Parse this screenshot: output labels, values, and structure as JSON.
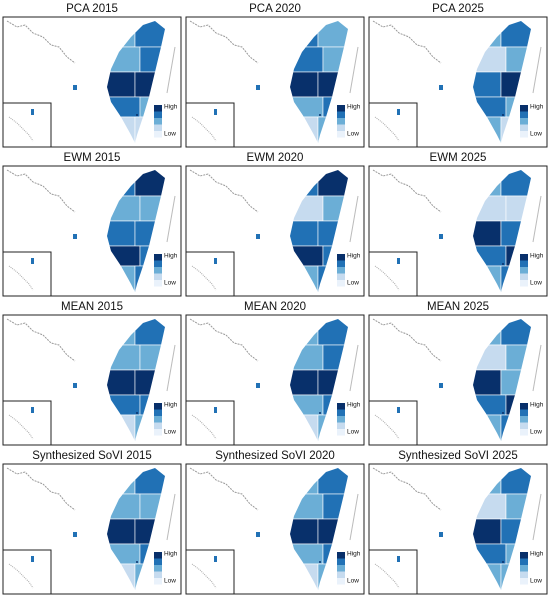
{
  "legend": {
    "high": "High",
    "low": "Low",
    "colors": [
      "#08306b",
      "#2171b5",
      "#6baed6",
      "#c6dbef",
      "#eaf2fb"
    ]
  },
  "panels": [
    {
      "title": "PCA 2015",
      "region_classes": [
        3,
        4,
        3,
        4,
        5,
        5,
        4,
        3,
        2,
        2
      ]
    },
    {
      "title": "PCA 2020",
      "region_classes": [
        4,
        3,
        4,
        3,
        5,
        5,
        3,
        4,
        2,
        3
      ]
    },
    {
      "title": "PCA 2025",
      "region_classes": [
        3,
        4,
        2,
        3,
        4,
        5,
        4,
        3,
        3,
        2
      ]
    },
    {
      "title": "EWM 2015",
      "region_classes": [
        4,
        5,
        3,
        3,
        4,
        4,
        5,
        4,
        3,
        4
      ]
    },
    {
      "title": "EWM 2020",
      "region_classes": [
        4,
        5,
        2,
        3,
        4,
        4,
        5,
        4,
        3,
        4
      ]
    },
    {
      "title": "EWM 2025",
      "region_classes": [
        3,
        4,
        2,
        2,
        5,
        4,
        4,
        5,
        3,
        4
      ]
    },
    {
      "title": "MEAN 2015",
      "region_classes": [
        3,
        4,
        3,
        3,
        5,
        5,
        4,
        4,
        2,
        3
      ]
    },
    {
      "title": "MEAN 2020",
      "region_classes": [
        3,
        4,
        3,
        4,
        5,
        5,
        3,
        4,
        2,
        3
      ]
    },
    {
      "title": "MEAN 2025",
      "region_classes": [
        3,
        4,
        2,
        3,
        5,
        3,
        4,
        5,
        3,
        4
      ]
    },
    {
      "title": "Synthesized SoVI 2015",
      "region_classes": [
        3,
        4,
        3,
        3,
        5,
        5,
        3,
        4,
        2,
        3
      ]
    },
    {
      "title": "Synthesized SoVI 2020",
      "region_classes": [
        3,
        4,
        3,
        4,
        5,
        5,
        3,
        4,
        2,
        3
      ]
    },
    {
      "title": "Synthesized SoVI 2025",
      "region_classes": [
        3,
        4,
        2,
        3,
        5,
        4,
        4,
        3,
        3,
        3
      ]
    }
  ]
}
